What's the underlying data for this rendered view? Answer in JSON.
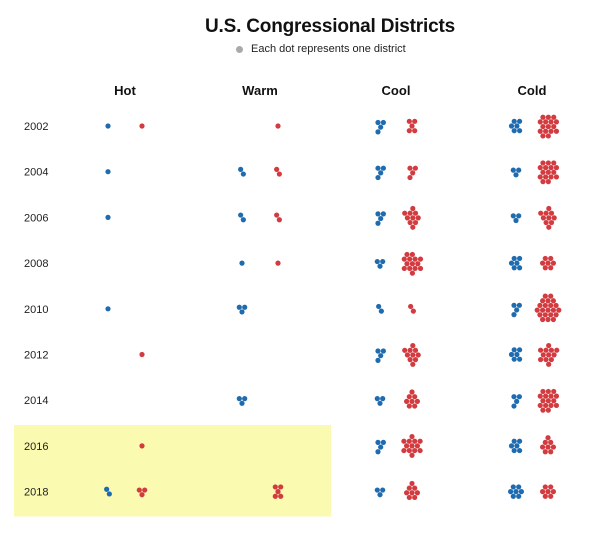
{
  "title": "U.S. Congressional Districts",
  "legend": {
    "label": "Each dot represents one district",
    "color": "#aaaaaa"
  },
  "colors": {
    "dem": "#1f6bb0",
    "rep": "#d23b3f",
    "highlight": "#fafab0"
  },
  "chart_data": {
    "type": "dot-matrix",
    "categories": [
      "Hot",
      "Warm",
      "Cool",
      "Cold"
    ],
    "rows": [
      "2002",
      "2004",
      "2006",
      "2008",
      "2010",
      "2012",
      "2014",
      "2016",
      "2018"
    ],
    "highlighted_rows": [
      "2016",
      "2018"
    ],
    "series": [
      {
        "color": "#1f6bb0",
        "counts": [
          [
            1,
            0,
            4,
            6
          ],
          [
            1,
            2,
            4,
            3
          ],
          [
            1,
            2,
            4,
            3
          ],
          [
            0,
            1,
            3,
            6
          ],
          [
            1,
            3,
            2,
            4
          ],
          [
            0,
            0,
            4,
            6
          ],
          [
            0,
            3,
            3,
            4
          ],
          [
            0,
            0,
            4,
            6
          ],
          [
            2,
            0,
            3,
            7
          ]
        ]
      },
      {
        "color": "#d23b3f",
        "counts": [
          [
            1,
            1,
            5,
            16
          ],
          [
            0,
            2,
            4,
            16
          ],
          [
            0,
            2,
            10,
            10
          ],
          [
            0,
            1,
            14,
            7
          ],
          [
            0,
            0,
            2,
            21
          ],
          [
            1,
            0,
            10,
            12
          ],
          [
            0,
            0,
            8,
            16
          ],
          [
            1,
            0,
            13,
            8
          ],
          [
            3,
            5,
            8,
            7
          ]
        ]
      }
    ]
  }
}
